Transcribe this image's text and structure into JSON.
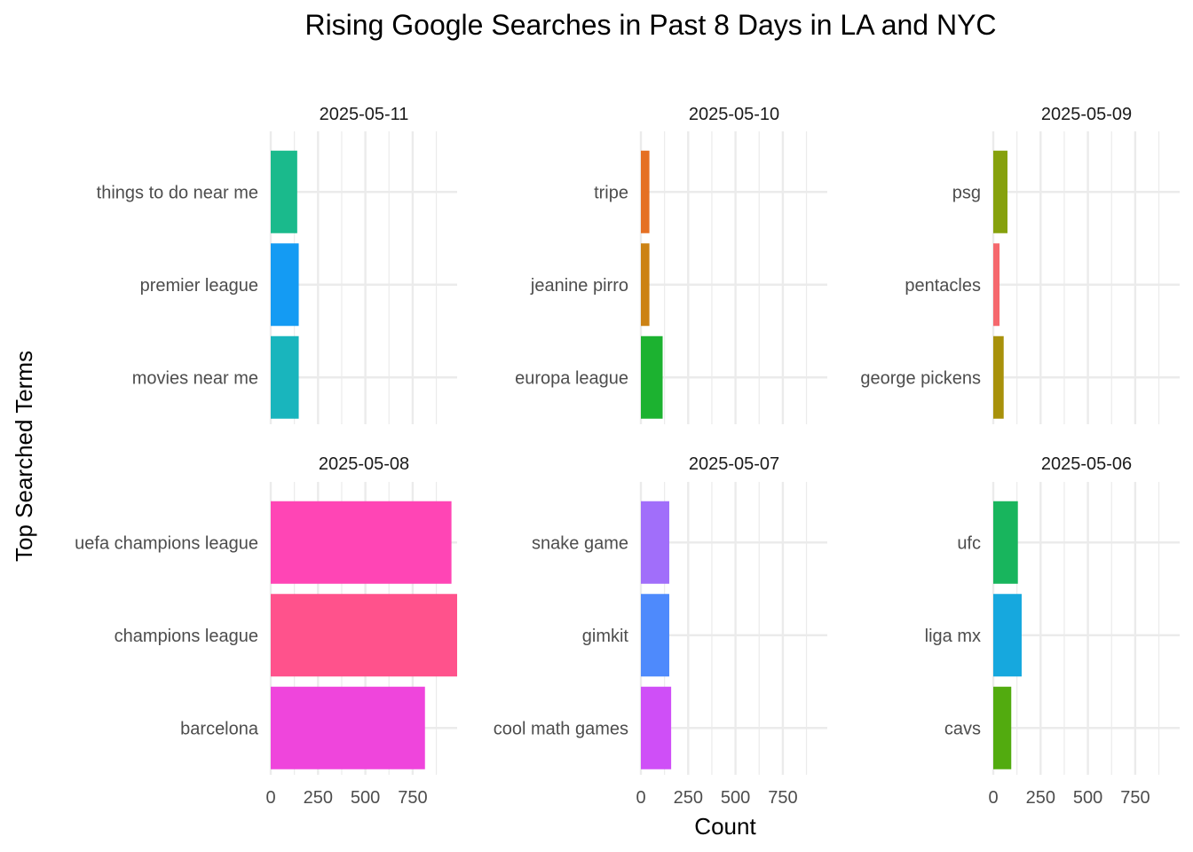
{
  "chart_data": {
    "type": "bar",
    "orientation": "horizontal",
    "title": "Rising Google Searches in Past 8 Days in LA and NYC",
    "xlabel": "Count",
    "ylabel": "Top Searched Terms",
    "xlim": [
      0,
      985
    ],
    "xticks": [
      0,
      250,
      500,
      750
    ],
    "grid": true,
    "legend": "none",
    "facets": [
      {
        "label": "2025-05-11",
        "bars": [
          {
            "term": "things to do near me",
            "value": 140,
            "color": "#1ABA8C"
          },
          {
            "term": "premier league",
            "value": 148,
            "color": "#149BF3"
          },
          {
            "term": "movies near me",
            "value": 148,
            "color": "#19B5BD"
          }
        ]
      },
      {
        "label": "2025-05-10",
        "bars": [
          {
            "term": "tripe",
            "value": 45,
            "color": "#E57023"
          },
          {
            "term": "jeanine pirro",
            "value": 45,
            "color": "#CC8214"
          },
          {
            "term": "europa league",
            "value": 115,
            "color": "#1CB230"
          }
        ]
      },
      {
        "label": "2025-05-09",
        "bars": [
          {
            "term": "psg",
            "value": 75,
            "color": "#86A10D"
          },
          {
            "term": "pentacles",
            "value": 33,
            "color": "#F5686D"
          },
          {
            "term": "george pickens",
            "value": 55,
            "color": "#A8910B"
          }
        ]
      },
      {
        "label": "2025-05-08",
        "bars": [
          {
            "term": "uefa champions league",
            "value": 955,
            "color": "#FF45B5"
          },
          {
            "term": "champions league",
            "value": 985,
            "color": "#FF528C"
          },
          {
            "term": "barcelona",
            "value": 815,
            "color": "#EF45DC"
          }
        ]
      },
      {
        "label": "2025-05-07",
        "bars": [
          {
            "term": "snake game",
            "value": 150,
            "color": "#A16EFA"
          },
          {
            "term": "gimkit",
            "value": 150,
            "color": "#4E8AFC"
          },
          {
            "term": "cool math games",
            "value": 160,
            "color": "#CF4FF7"
          }
        ]
      },
      {
        "label": "2025-05-06",
        "bars": [
          {
            "term": "ufc",
            "value": 130,
            "color": "#18B55D"
          },
          {
            "term": "liga mx",
            "value": 150,
            "color": "#16A8DE"
          },
          {
            "term": "cavs",
            "value": 95,
            "color": "#52AB0F"
          }
        ]
      }
    ]
  }
}
